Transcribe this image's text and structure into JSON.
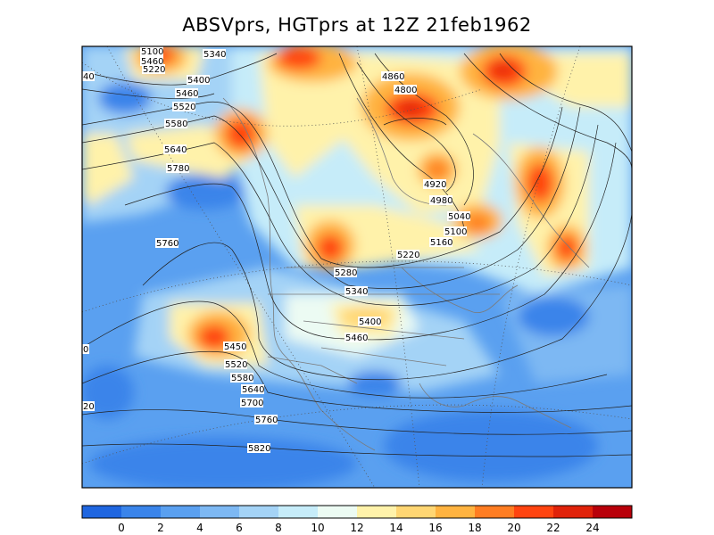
{
  "title": "ABSVprs, HGTprs at 12Z  21feb1962",
  "contour_labels": [
    "5100",
    "5460",
    "5220",
    "5340",
    "5400",
    "5460",
    "5520",
    "5580",
    "5640",
    "5780",
    "5760",
    "4860",
    "4800",
    "4920",
    "4980",
    "5040",
    "5100",
    "5160",
    "5220",
    "5280",
    "5340",
    "5400",
    "5460",
    "5450",
    "5520",
    "5580",
    "5640",
    "5700",
    "5760",
    "5820",
    "40",
    "0",
    "20"
  ],
  "colorbar": {
    "tick_labels": [
      "0",
      "2",
      "4",
      "6",
      "8",
      "10",
      "12",
      "14",
      "16",
      "18",
      "20",
      "22",
      "24"
    ],
    "colors": [
      "#1f66e0",
      "#3a84ea",
      "#5aa0f0",
      "#7db8f3",
      "#a4d3f6",
      "#c6ecf9",
      "#ecfbf3",
      "#fff2aa",
      "#ffd673",
      "#ffb340",
      "#ff7d22",
      "#ff4410",
      "#e0220a",
      "#b8000a"
    ]
  }
}
